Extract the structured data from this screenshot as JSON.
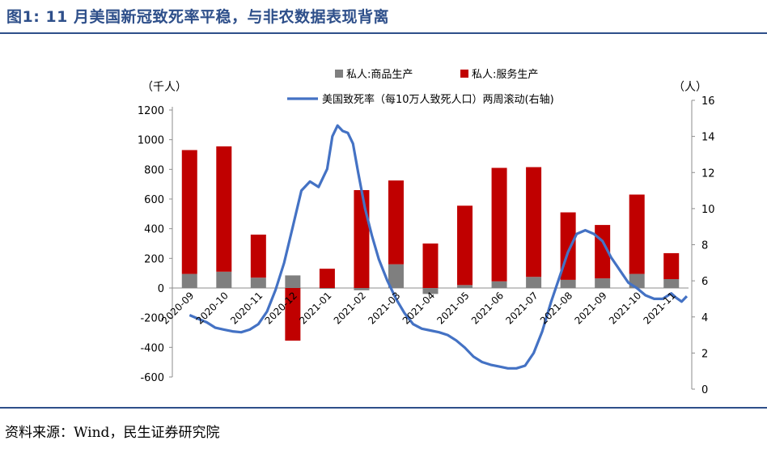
{
  "title": "图1: 11 月美国新冠致死率平稳，与非农数据表现背离",
  "source": "资料来源：Wind，民生证券研究院",
  "colors": {
    "title": "#2e4f8a",
    "goods_bar": "#7f7f7f",
    "services_bar": "#c00000",
    "line": "#4472c4"
  },
  "chart_data": {
    "type": "bar+line",
    "left_axis_unit": "（千人）",
    "right_axis_unit": "（人）",
    "categories": [
      "2020-09",
      "2020-10",
      "2020-11",
      "2020-12",
      "2021-01",
      "2021-02",
      "2021-03",
      "2021-04",
      "2021-05",
      "2021-06",
      "2021-07",
      "2021-08",
      "2021-09",
      "2021-10",
      "2021-11"
    ],
    "category_labels": [
      "2020-09",
      "2020-10",
      "2020-11",
      "2020-12",
      "2021-01",
      "2021-02",
      "2021-03",
      "2021-04",
      "2021-05",
      "2021-06",
      "2021-07",
      "2021-08",
      "2021-09",
      "2021-10",
      "2021-11"
    ],
    "left_ylim": [
      -600,
      1200
    ],
    "left_ticks": [
      -600,
      -400,
      -200,
      0,
      200,
      400,
      600,
      800,
      1000,
      1200
    ],
    "right_ylim": [
      0,
      16
    ],
    "right_ticks": [
      0,
      2,
      4,
      6,
      8,
      10,
      12,
      14,
      16
    ],
    "legend": [
      {
        "name": "私人:商品生产",
        "kind": "bar"
      },
      {
        "name": "私人:服务生产",
        "kind": "bar"
      },
      {
        "name": "美国致死率（每10万人致死人口）两周滚动(右轴)",
        "kind": "line"
      }
    ],
    "series": [
      {
        "name": "私人:商品生产",
        "axis": "left",
        "values": [
          95,
          110,
          70,
          85,
          -5,
          -15,
          160,
          -40,
          20,
          45,
          75,
          55,
          65,
          95,
          60
        ]
      },
      {
        "name": "私人:服务生产",
        "axis": "left",
        "values": [
          835,
          845,
          290,
          -355,
          130,
          660,
          565,
          300,
          535,
          765,
          740,
          455,
          360,
          535,
          175
        ]
      },
      {
        "name": "美国致死率（每10万人致死人口）两周滚动(右轴)",
        "axis": "right",
        "x": [
          0,
          0.25,
          0.5,
          0.75,
          1,
          1.25,
          1.5,
          1.75,
          2,
          2.25,
          2.5,
          2.75,
          3,
          3.25,
          3.5,
          3.75,
          4,
          4.15,
          4.3,
          4.45,
          4.6,
          4.75,
          4.9,
          5.1,
          5.3,
          5.5,
          5.75,
          6,
          6.25,
          6.5,
          6.75,
          7,
          7.25,
          7.5,
          7.75,
          8,
          8.25,
          8.5,
          8.75,
          9,
          9.25,
          9.5,
          9.75,
          10,
          10.25,
          10.5,
          10.75,
          11,
          11.25,
          11.5,
          11.75,
          12,
          12.25,
          12.5,
          12.75,
          13,
          13.25,
          13.5,
          13.75,
          14,
          14.15,
          14.3,
          14.45
        ],
        "values": [
          4.1,
          3.9,
          3.7,
          3.4,
          3.3,
          3.2,
          3.15,
          3.3,
          3.6,
          4.3,
          5.5,
          7.0,
          9.0,
          11.0,
          11.5,
          11.2,
          12.2,
          14.0,
          14.6,
          14.3,
          14.2,
          13.6,
          12.0,
          10.0,
          8.5,
          7.2,
          6.0,
          5.0,
          4.2,
          3.6,
          3.35,
          3.25,
          3.15,
          3.0,
          2.7,
          2.3,
          1.8,
          1.5,
          1.35,
          1.25,
          1.15,
          1.15,
          1.3,
          2.0,
          3.2,
          4.8,
          6.2,
          7.6,
          8.6,
          8.8,
          8.6,
          8.2,
          7.3,
          6.6,
          5.9,
          5.6,
          5.2,
          5.0,
          5.0,
          5.3,
          5.05,
          4.85,
          5.15
        ]
      }
    ]
  }
}
